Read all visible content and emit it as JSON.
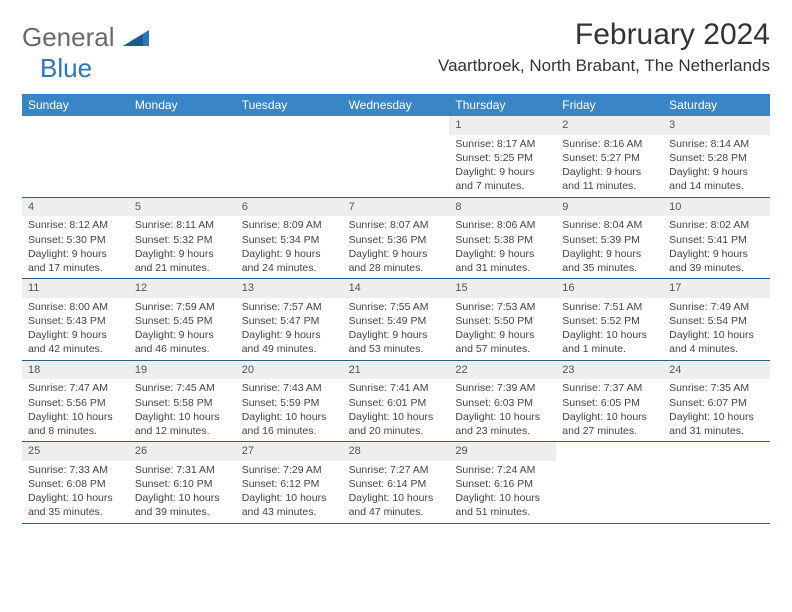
{
  "logo": {
    "general": "General",
    "blue": "Blue"
  },
  "title": "February 2024",
  "location": "Vaartbroek, North Brabant, The Netherlands",
  "colors": {
    "header_bg": "#3a85c6",
    "header_text": "#ffffff",
    "daynum_bg": "#eeeeee",
    "row_border": "#2b5f8a",
    "logo_blue": "#2b77b8",
    "logo_gray": "#6a6a6a"
  },
  "weekdays": [
    "Sunday",
    "Monday",
    "Tuesday",
    "Wednesday",
    "Thursday",
    "Friday",
    "Saturday"
  ],
  "weeks": [
    [
      null,
      null,
      null,
      null,
      {
        "n": "1",
        "sunrise": "Sunrise: 8:17 AM",
        "sunset": "Sunset: 5:25 PM",
        "day1": "Daylight: 9 hours",
        "day2": "and 7 minutes."
      },
      {
        "n": "2",
        "sunrise": "Sunrise: 8:16 AM",
        "sunset": "Sunset: 5:27 PM",
        "day1": "Daylight: 9 hours",
        "day2": "and 11 minutes."
      },
      {
        "n": "3",
        "sunrise": "Sunrise: 8:14 AM",
        "sunset": "Sunset: 5:28 PM",
        "day1": "Daylight: 9 hours",
        "day2": "and 14 minutes."
      }
    ],
    [
      {
        "n": "4",
        "sunrise": "Sunrise: 8:12 AM",
        "sunset": "Sunset: 5:30 PM",
        "day1": "Daylight: 9 hours",
        "day2": "and 17 minutes."
      },
      {
        "n": "5",
        "sunrise": "Sunrise: 8:11 AM",
        "sunset": "Sunset: 5:32 PM",
        "day1": "Daylight: 9 hours",
        "day2": "and 21 minutes."
      },
      {
        "n": "6",
        "sunrise": "Sunrise: 8:09 AM",
        "sunset": "Sunset: 5:34 PM",
        "day1": "Daylight: 9 hours",
        "day2": "and 24 minutes."
      },
      {
        "n": "7",
        "sunrise": "Sunrise: 8:07 AM",
        "sunset": "Sunset: 5:36 PM",
        "day1": "Daylight: 9 hours",
        "day2": "and 28 minutes."
      },
      {
        "n": "8",
        "sunrise": "Sunrise: 8:06 AM",
        "sunset": "Sunset: 5:38 PM",
        "day1": "Daylight: 9 hours",
        "day2": "and 31 minutes."
      },
      {
        "n": "9",
        "sunrise": "Sunrise: 8:04 AM",
        "sunset": "Sunset: 5:39 PM",
        "day1": "Daylight: 9 hours",
        "day2": "and 35 minutes."
      },
      {
        "n": "10",
        "sunrise": "Sunrise: 8:02 AM",
        "sunset": "Sunset: 5:41 PM",
        "day1": "Daylight: 9 hours",
        "day2": "and 39 minutes."
      }
    ],
    [
      {
        "n": "11",
        "sunrise": "Sunrise: 8:00 AM",
        "sunset": "Sunset: 5:43 PM",
        "day1": "Daylight: 9 hours",
        "day2": "and 42 minutes."
      },
      {
        "n": "12",
        "sunrise": "Sunrise: 7:59 AM",
        "sunset": "Sunset: 5:45 PM",
        "day1": "Daylight: 9 hours",
        "day2": "and 46 minutes."
      },
      {
        "n": "13",
        "sunrise": "Sunrise: 7:57 AM",
        "sunset": "Sunset: 5:47 PM",
        "day1": "Daylight: 9 hours",
        "day2": "and 49 minutes."
      },
      {
        "n": "14",
        "sunrise": "Sunrise: 7:55 AM",
        "sunset": "Sunset: 5:49 PM",
        "day1": "Daylight: 9 hours",
        "day2": "and 53 minutes."
      },
      {
        "n": "15",
        "sunrise": "Sunrise: 7:53 AM",
        "sunset": "Sunset: 5:50 PM",
        "day1": "Daylight: 9 hours",
        "day2": "and 57 minutes."
      },
      {
        "n": "16",
        "sunrise": "Sunrise: 7:51 AM",
        "sunset": "Sunset: 5:52 PM",
        "day1": "Daylight: 10 hours",
        "day2": "and 1 minute."
      },
      {
        "n": "17",
        "sunrise": "Sunrise: 7:49 AM",
        "sunset": "Sunset: 5:54 PM",
        "day1": "Daylight: 10 hours",
        "day2": "and 4 minutes."
      }
    ],
    [
      {
        "n": "18",
        "sunrise": "Sunrise: 7:47 AM",
        "sunset": "Sunset: 5:56 PM",
        "day1": "Daylight: 10 hours",
        "day2": "and 8 minutes."
      },
      {
        "n": "19",
        "sunrise": "Sunrise: 7:45 AM",
        "sunset": "Sunset: 5:58 PM",
        "day1": "Daylight: 10 hours",
        "day2": "and 12 minutes."
      },
      {
        "n": "20",
        "sunrise": "Sunrise: 7:43 AM",
        "sunset": "Sunset: 5:59 PM",
        "day1": "Daylight: 10 hours",
        "day2": "and 16 minutes."
      },
      {
        "n": "21",
        "sunrise": "Sunrise: 7:41 AM",
        "sunset": "Sunset: 6:01 PM",
        "day1": "Daylight: 10 hours",
        "day2": "and 20 minutes."
      },
      {
        "n": "22",
        "sunrise": "Sunrise: 7:39 AM",
        "sunset": "Sunset: 6:03 PM",
        "day1": "Daylight: 10 hours",
        "day2": "and 23 minutes."
      },
      {
        "n": "23",
        "sunrise": "Sunrise: 7:37 AM",
        "sunset": "Sunset: 6:05 PM",
        "day1": "Daylight: 10 hours",
        "day2": "and 27 minutes."
      },
      {
        "n": "24",
        "sunrise": "Sunrise: 7:35 AM",
        "sunset": "Sunset: 6:07 PM",
        "day1": "Daylight: 10 hours",
        "day2": "and 31 minutes."
      }
    ],
    [
      {
        "n": "25",
        "sunrise": "Sunrise: 7:33 AM",
        "sunset": "Sunset: 6:08 PM",
        "day1": "Daylight: 10 hours",
        "day2": "and 35 minutes."
      },
      {
        "n": "26",
        "sunrise": "Sunrise: 7:31 AM",
        "sunset": "Sunset: 6:10 PM",
        "day1": "Daylight: 10 hours",
        "day2": "and 39 minutes."
      },
      {
        "n": "27",
        "sunrise": "Sunrise: 7:29 AM",
        "sunset": "Sunset: 6:12 PM",
        "day1": "Daylight: 10 hours",
        "day2": "and 43 minutes."
      },
      {
        "n": "28",
        "sunrise": "Sunrise: 7:27 AM",
        "sunset": "Sunset: 6:14 PM",
        "day1": "Daylight: 10 hours",
        "day2": "and 47 minutes."
      },
      {
        "n": "29",
        "sunrise": "Sunrise: 7:24 AM",
        "sunset": "Sunset: 6:16 PM",
        "day1": "Daylight: 10 hours",
        "day2": "and 51 minutes."
      },
      null,
      null
    ]
  ]
}
